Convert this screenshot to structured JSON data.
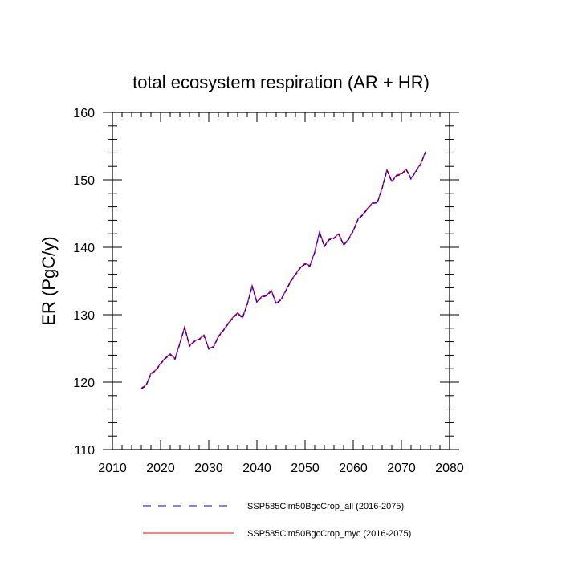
{
  "chart_data": {
    "type": "line",
    "title": "total ecosystem respiration (AR + HR)",
    "xlabel": "",
    "ylabel": "ER  (PgC/y)",
    "xlim": [
      2010,
      2080
    ],
    "ylim": [
      110,
      160
    ],
    "x_ticks": [
      2010,
      2020,
      2030,
      2040,
      2050,
      2060,
      2070,
      2080
    ],
    "y_ticks": [
      110,
      120,
      130,
      140,
      150,
      160
    ],
    "grid": false,
    "legend_position": "bottom",
    "x": [
      2016,
      2017,
      2018,
      2019,
      2020,
      2021,
      2022,
      2023,
      2024,
      2025,
      2026,
      2027,
      2028,
      2029,
      2030,
      2031,
      2032,
      2033,
      2034,
      2035,
      2036,
      2037,
      2038,
      2039,
      2040,
      2041,
      2042,
      2043,
      2044,
      2045,
      2046,
      2047,
      2048,
      2049,
      2050,
      2051,
      2052,
      2053,
      2054,
      2055,
      2056,
      2057,
      2058,
      2059,
      2060,
      2061,
      2062,
      2063,
      2064,
      2065,
      2066,
      2067,
      2068,
      2069,
      2070,
      2071,
      2072,
      2073,
      2074,
      2075
    ],
    "series": [
      {
        "name": "ISSP585Clm50BgcCrop_all (2016-2075)",
        "color": "#0000ff",
        "dash": "dashed",
        "values": [
          119.0,
          119.5,
          121.2,
          121.7,
          122.7,
          123.5,
          124.1,
          123.4,
          125.7,
          128.1,
          125.3,
          126.0,
          126.3,
          126.9,
          124.9,
          125.2,
          126.7,
          127.6,
          128.6,
          129.5,
          130.2,
          129.5,
          131.5,
          134.2,
          131.8,
          132.6,
          132.8,
          133.5,
          131.6,
          132.2,
          133.5,
          134.9,
          135.9,
          136.9,
          137.5,
          137.2,
          139.2,
          142.2,
          140.1,
          141.1,
          141.3,
          141.9,
          140.3,
          141.1,
          142.4,
          144.1,
          144.8,
          145.7,
          146.5,
          146.6,
          148.7,
          151.4,
          149.7,
          150.6,
          150.8,
          151.5,
          150.1,
          151.2,
          152.3,
          154.1
        ]
      },
      {
        "name": "ISSP585Clm50BgcCrop_myc (2016-2075)",
        "color": "#ff0000",
        "dash": "solid",
        "values": [
          119.1,
          119.6,
          121.3,
          121.8,
          122.8,
          123.6,
          124.2,
          123.5,
          125.8,
          128.2,
          125.4,
          126.1,
          126.4,
          127.0,
          125.0,
          125.3,
          126.8,
          127.7,
          128.7,
          129.6,
          130.3,
          129.6,
          131.6,
          134.3,
          131.9,
          132.7,
          132.9,
          133.6,
          131.7,
          132.3,
          133.6,
          135.0,
          136.0,
          137.0,
          137.6,
          137.3,
          139.3,
          142.3,
          140.2,
          141.2,
          141.4,
          142.0,
          140.4,
          141.2,
          142.5,
          144.2,
          144.9,
          145.8,
          146.6,
          146.7,
          148.8,
          151.5,
          149.8,
          150.7,
          150.9,
          151.6,
          150.2,
          151.3,
          152.4,
          154.2
        ]
      }
    ]
  }
}
